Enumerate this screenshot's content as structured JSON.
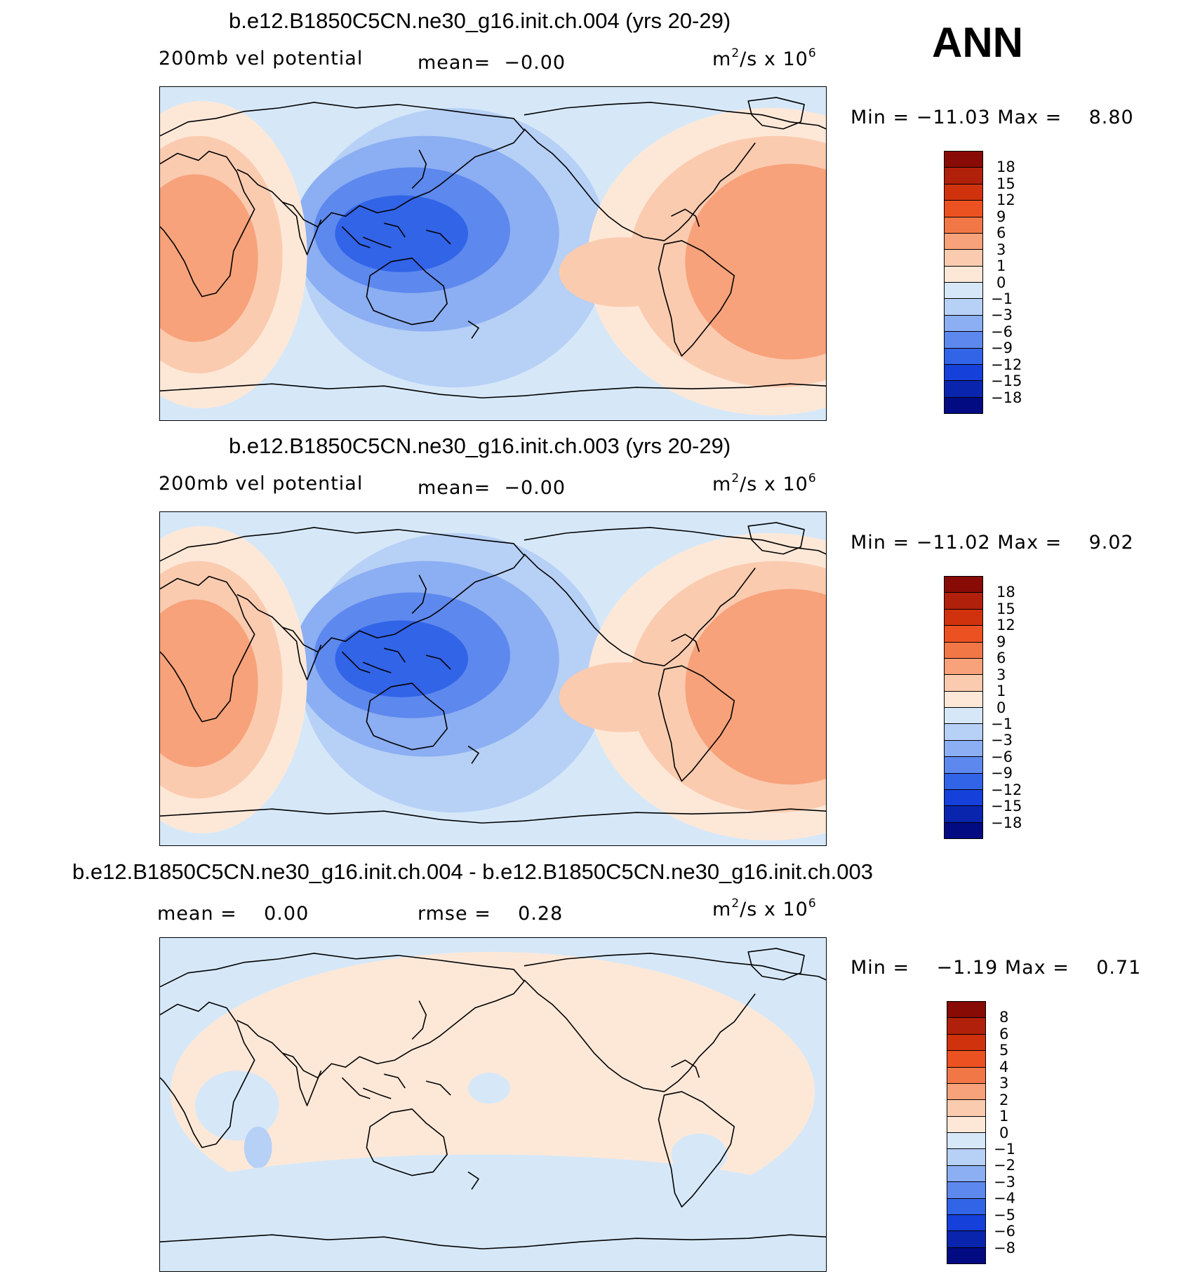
{
  "season": "ANN",
  "units": {
    "base": "m",
    "exp1": "2",
    "mid": "/s x 10",
    "exp2": "6"
  },
  "colors": {
    "pos": [
      "#fde8d8",
      "#fbcbb0",
      "#f7a27a",
      "#f27747",
      "#ec5121",
      "#d0320e",
      "#b1200a",
      "#880b06"
    ],
    "neg": [
      "#d6e8f8",
      "#b7d0f6",
      "#8caef2",
      "#5d88ee",
      "#3264e8",
      "#1540d9",
      "#0a25ad",
      "#020b82"
    ],
    "land": "#000000"
  },
  "panels": [
    {
      "title": "b.e12.B1850C5CN.ne30_g16.init.ch.004 (yrs 20-29)",
      "left_label": "200mb vel potential",
      "stat1_label": "mean=",
      "stat1_value": "−0.00",
      "stat2_label": "",
      "stat2_value": "",
      "min_label": "Min",
      "min_value": "−11.03",
      "max_label": "Max",
      "max_value": "8.80",
      "ticks": [
        "18",
        "15",
        "12",
        "9",
        "6",
        "3",
        "1",
        "0",
        "−1",
        "−3",
        "−6",
        "−9",
        "−12",
        "−15",
        "−18"
      ]
    },
    {
      "title": "b.e12.B1850C5CN.ne30_g16.init.ch.003 (yrs 20-29)",
      "left_label": "200mb vel potential",
      "stat1_label": "mean=",
      "stat1_value": "−0.00",
      "stat2_label": "",
      "stat2_value": "",
      "min_label": "Min",
      "min_value": "−11.02",
      "max_label": "Max",
      "max_value": "9.02",
      "ticks": [
        "18",
        "15",
        "12",
        "9",
        "6",
        "3",
        "1",
        "0",
        "−1",
        "−3",
        "−6",
        "−9",
        "−12",
        "−15",
        "−18"
      ]
    },
    {
      "title": "b.e12.B1850C5CN.ne30_g16.init.ch.004 - b.e12.B1850C5CN.ne30_g16.init.ch.003",
      "left_label": "",
      "stat1_label": "mean =",
      "stat1_value": "0.00",
      "stat2_label": "rmse =",
      "stat2_value": "0.28",
      "min_label": "Min",
      "min_value": "−1.19",
      "max_label": "Max",
      "max_value": "0.71",
      "ticks": [
        "8",
        "6",
        "5",
        "4",
        "3",
        "2",
        "1",
        "0",
        "−1",
        "−2",
        "−3",
        "−4",
        "−5",
        "−6",
        "−8"
      ]
    }
  ]
}
